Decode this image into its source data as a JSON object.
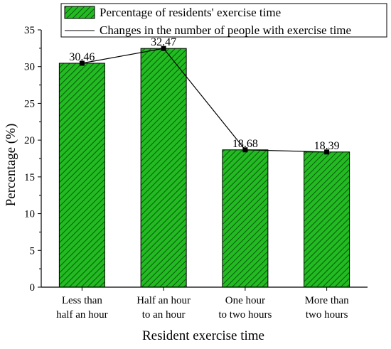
{
  "chart_data": {
    "type": "bar",
    "categories": [
      "Less than half an hour",
      "Half an hour to an hour",
      "One hour to two hours",
      "More than two hours"
    ],
    "category_lines": [
      [
        "Less than",
        "half an hour"
      ],
      [
        "Half an hour",
        "to an hour"
      ],
      [
        "One hour",
        "to two hours"
      ],
      [
        "More than",
        "two hours"
      ]
    ],
    "series": [
      {
        "name": "Percentage of residents' exercise time",
        "type": "bar",
        "values": [
          30.46,
          32.47,
          18.68,
          18.39
        ],
        "labels": [
          "30.46",
          "32.47",
          "18.68",
          "18.39"
        ],
        "color": "#22bb22",
        "pattern": "diagonal-hatch"
      },
      {
        "name": "Changes in the number of people with exercise time",
        "type": "line",
        "values": [
          30.46,
          32.47,
          18.68,
          18.39
        ],
        "color": "#000000",
        "marker": "square"
      }
    ],
    "xlabel": "Resident exercise time",
    "ylabel": "Percentage (%)",
    "ylim": [
      0,
      35
    ],
    "yticks": [
      0,
      5,
      10,
      15,
      20,
      25,
      30,
      35
    ],
    "legend_position": "top",
    "grid": false
  }
}
